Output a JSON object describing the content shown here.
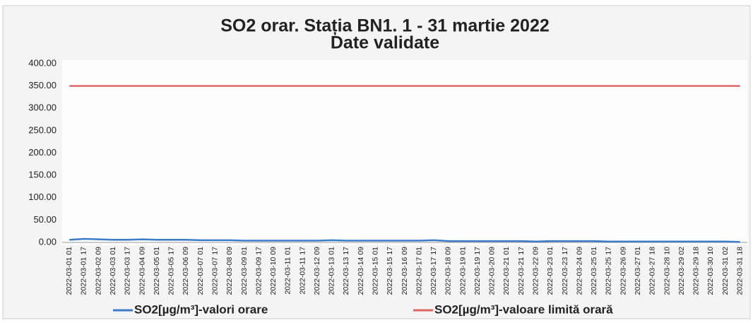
{
  "chart_data": {
    "type": "line",
    "title": "SO2 orar. Stația BN1. 1 - 31 martie 2022",
    "subtitle": "Date validate",
    "categories": [
      "2022-03-01 01",
      "2022-03-01 17",
      "2022-03-02 09",
      "2022-03-03 01",
      "2022-03-03 17",
      "2022-03-04 09",
      "2022-03-05 01",
      "2022-03-05 17",
      "2022-03-06 09",
      "2022-03-07 01",
      "2022-03-07 17",
      "2022-03-08 09",
      "2022-03-09 01",
      "2022-03-09 17",
      "2022-03-10 09",
      "2022-03-11 01",
      "2022-03-11 17",
      "2022-03-12 09",
      "2022-03-13 01",
      "2022-03-13 17",
      "2022-03-14 09",
      "2022-03-15 01",
      "2022-03-15 17",
      "2022-03-16 09",
      "2022-03-17 01",
      "2022-03-17 17",
      "2022-03-18 09",
      "2022-03-19 01",
      "2022-03-19 17",
      "2022-03-20 09",
      "2022-03-21 01",
      "2022-03-21 17",
      "2022-03-22 09",
      "2022-03-23 01",
      "2022-03-23 17",
      "2022-03-24 09",
      "2022-03-25 01",
      "2022-03-25 17",
      "2022-03-26 09",
      "2022-03-27 01",
      "2022-03-27 18",
      "2022-03-28 10",
      "2022-03-29 02",
      "2022-03-29 18",
      "2022-03-30 10",
      "2022-03-31 02",
      "2022-03-31 18"
    ],
    "series": [
      {
        "name": "SO2[µg/m³]-valori orare",
        "color": "#3b7cc9",
        "values": [
          6,
          8,
          7,
          6,
          6,
          7,
          6,
          6,
          6,
          5,
          5,
          5,
          4,
          4,
          4,
          4,
          4,
          4,
          5,
          4,
          4,
          4,
          4,
          4,
          4,
          5,
          3,
          3,
          3,
          3,
          3,
          3,
          2,
          3,
          3,
          3,
          3,
          2,
          2,
          2,
          2,
          2,
          2,
          2,
          2,
          2,
          1
        ]
      },
      {
        "name": "SO2[µg/m³]-valoare limită orară",
        "color": "#e06464",
        "values": [
          350,
          350,
          350,
          350,
          350,
          350,
          350,
          350,
          350,
          350,
          350,
          350,
          350,
          350,
          350,
          350,
          350,
          350,
          350,
          350,
          350,
          350,
          350,
          350,
          350,
          350,
          350,
          350,
          350,
          350,
          350,
          350,
          350,
          350,
          350,
          350,
          350,
          350,
          350,
          350,
          350,
          350,
          350,
          350,
          350,
          350,
          350
        ]
      }
    ],
    "ylim": [
      0,
      400
    ],
    "yticks": [
      {
        "value": 0,
        "label": "0.00"
      },
      {
        "value": 50,
        "label": "50.00"
      },
      {
        "value": 100,
        "label": "100.00"
      },
      {
        "value": 150,
        "label": "150.00"
      },
      {
        "value": 200,
        "label": "200.00"
      },
      {
        "value": 250,
        "label": "250.00"
      },
      {
        "value": 300,
        "label": "300.00"
      },
      {
        "value": 350,
        "label": "350.00"
      },
      {
        "value": 400,
        "label": "400.00"
      }
    ],
    "grid": false,
    "legend": "bottom"
  }
}
